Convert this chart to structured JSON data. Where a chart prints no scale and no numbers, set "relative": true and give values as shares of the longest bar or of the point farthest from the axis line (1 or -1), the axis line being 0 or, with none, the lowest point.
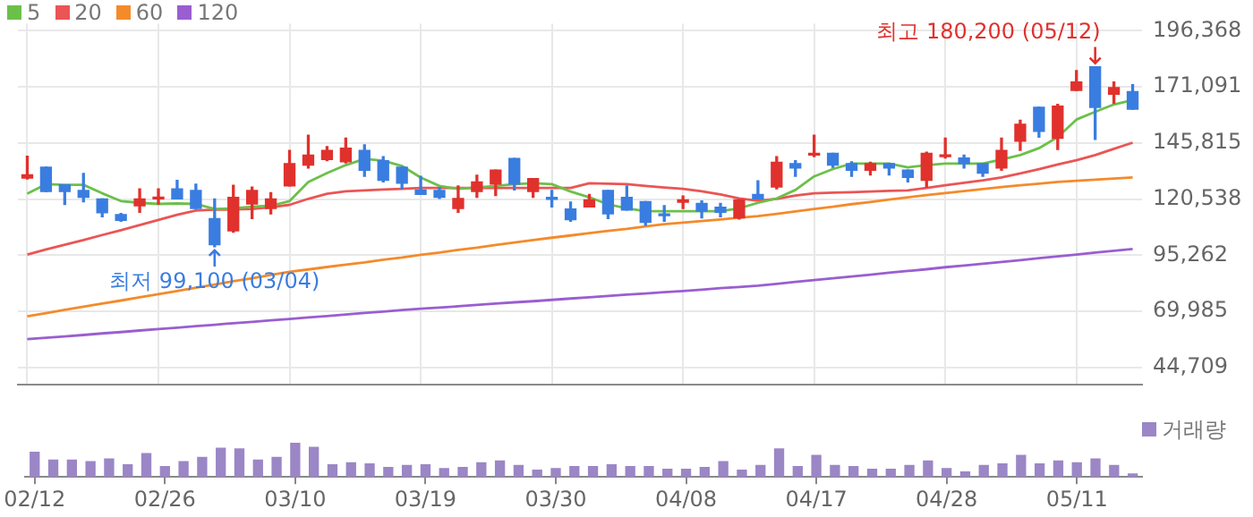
{
  "chart_data": [
    {
      "type": "candlestick",
      "categories": [
        null,
        null,
        null,
        null,
        null,
        null,
        null,
        null,
        null,
        null,
        null,
        null,
        null,
        null,
        null,
        null,
        null,
        null,
        null,
        null,
        null,
        null,
        null,
        null,
        null,
        null,
        null,
        null,
        null,
        null,
        null,
        null,
        null,
        null,
        null,
        null,
        null,
        null,
        null,
        null,
        null,
        null,
        null,
        null,
        null,
        null,
        null,
        null,
        null,
        null,
        null,
        null,
        null,
        null,
        null,
        null,
        null,
        null,
        null,
        null
      ],
      "ohlc": [
        [
          130000,
          139900,
          129600,
          131500
        ],
        [
          134900,
          134900,
          124000,
          124000
        ],
        [
          127000,
          127000,
          118200,
          124000
        ],
        [
          124500,
          132100,
          119400,
          121400
        ],
        [
          120700,
          120700,
          112600,
          114400
        ],
        [
          113600,
          114100,
          110600,
          111000
        ],
        [
          117600,
          125200,
          114600,
          120700
        ],
        [
          120700,
          125200,
          118400,
          121400
        ],
        [
          125200,
          129000,
          120700,
          120700
        ],
        [
          124500,
          127300,
          116400,
          116400
        ],
        [
          111800,
          120700,
          99100,
          100000
        ],
        [
          106300,
          126800,
          105700,
          121400
        ],
        [
          118400,
          126000,
          111800,
          124500
        ],
        [
          116400,
          123500,
          113900,
          120700
        ],
        [
          126500,
          142500,
          126500,
          136600
        ],
        [
          135900,
          149300,
          134600,
          140400
        ],
        [
          138400,
          144200,
          137900,
          142500
        ],
        [
          137400,
          148000,
          136900,
          143500
        ],
        [
          142500,
          145000,
          130800,
          133600
        ],
        [
          137900,
          139700,
          128300,
          129000
        ],
        [
          134900,
          134900,
          125200,
          127700
        ],
        [
          124700,
          130800,
          122700,
          122700
        ],
        [
          124500,
          125800,
          120900,
          121400
        ],
        [
          116400,
          126500,
          114600,
          120900
        ],
        [
          124000,
          131300,
          121400,
          128300
        ],
        [
          127300,
          133600,
          122200,
          133600
        ],
        [
          138900,
          138900,
          124700,
          127300
        ],
        [
          124000,
          129800,
          121400,
          129800
        ],
        [
          121400,
          124500,
          117100,
          120500
        ],
        [
          116100,
          119200,
          110600,
          111300
        ],
        [
          117100,
          122700,
          117100,
          120200
        ],
        [
          124500,
          124500,
          111800,
          113900
        ],
        [
          121400,
          126500,
          115600,
          115600
        ],
        [
          119400,
          119400,
          108800,
          110100
        ],
        [
          113900,
          117600,
          110600,
          113100
        ],
        [
          119200,
          122000,
          116400,
          120200
        ],
        [
          118600,
          119700,
          112100,
          115100
        ],
        [
          116900,
          118600,
          112600,
          114600
        ],
        [
          112100,
          120200,
          111600,
          120200
        ],
        [
          122700,
          128800,
          120700,
          120700
        ],
        [
          126000,
          139700,
          125200,
          137200
        ],
        [
          136600,
          137900,
          130800,
          134600
        ],
        [
          140400,
          149300,
          139700,
          141200
        ],
        [
          141200,
          141200,
          134900,
          135900
        ],
        [
          136600,
          137400,
          130800,
          133600
        ],
        [
          133600,
          137200,
          131500,
          136600
        ],
        [
          136600,
          136600,
          131500,
          134600
        ],
        [
          133600,
          133600,
          128300,
          130300
        ],
        [
          129000,
          141700,
          126000,
          141200
        ],
        [
          139700,
          148000,
          139100,
          140400
        ],
        [
          139100,
          140400,
          134600,
          136600
        ],
        [
          136600,
          136600,
          130800,
          132300
        ],
        [
          134600,
          148000,
          133600,
          142500
        ],
        [
          146700,
          156100,
          142500,
          154300
        ],
        [
          161900,
          161900,
          148500,
          151100
        ],
        [
          148000,
          163200,
          142900,
          162400
        ],
        [
          169500,
          178400,
          169500,
          173300
        ],
        [
          180200,
          180200,
          147500,
          161900
        ],
        [
          167800,
          173300,
          163700,
          170800
        ],
        [
          169000,
          172100,
          161100,
          161100
        ]
      ],
      "colors": [
        "#e0312d",
        "#3a7de0",
        "#3a7de0",
        "#3a7de0",
        "#3a7de0",
        "#3a7de0",
        "#e0312d",
        "#e0312d",
        "#3a7de0",
        "#3a7de0",
        "#3a7de0",
        "#e0312d",
        "#e0312d",
        "#e0312d",
        "#e0312d",
        "#e0312d",
        "#e0312d",
        "#e0312d",
        "#3a7de0",
        "#3a7de0",
        "#3a7de0",
        "#3a7de0",
        "#3a7de0",
        "#e0312d",
        "#e0312d",
        "#e0312d",
        "#3a7de0",
        "#e0312d",
        "#3a7de0",
        "#3a7de0",
        "#e0312d",
        "#3a7de0",
        "#3a7de0",
        "#3a7de0",
        "#3a7de0",
        "#e0312d",
        "#3a7de0",
        "#3a7de0",
        "#e0312d",
        "#3a7de0",
        "#e0312d",
        "#3a7de0",
        "#e0312d",
        "#3a7de0",
        "#3a7de0",
        "#e0312d",
        "#3a7de0",
        "#3a7de0",
        "#e0312d",
        "#e0312d",
        "#3a7de0",
        "#3a7de0",
        "#e0312d",
        "#e0312d",
        "#3a7de0",
        "#e0312d",
        "#e0312d",
        "#3a7de0",
        "#e0312d",
        "#3a7de0"
      ],
      "series": [
        {
          "type": "line",
          "name": "5",
          "color": "#6cc04a",
          "values": [
            123000,
            127300,
            127000,
            127000,
            123200,
            119700,
            118900,
            118400,
            118600,
            118400,
            116100,
            116400,
            117100,
            117600,
            119700,
            128300,
            132300,
            135900,
            138700,
            137900,
            135500,
            130300,
            126500,
            125200,
            125800,
            126500,
            127300,
            127700,
            127300,
            124000,
            121400,
            118200,
            116400,
            115100,
            115100,
            115100,
            115100,
            115100,
            116400,
            118900,
            120900,
            124700,
            130800,
            134100,
            136600,
            136600,
            136600,
            134900,
            135900,
            136600,
            136600,
            136600,
            138400,
            140400,
            143500,
            148500,
            156400,
            159900,
            163200,
            165200
          ]
        },
        {
          "type": "line",
          "name": "20",
          "color": "#ea5555",
          "values": [
            95600,
            97900,
            100000,
            102100,
            104400,
            106600,
            108900,
            111200,
            113500,
            115400,
            115800,
            115900,
            116100,
            116900,
            118000,
            120700,
            123000,
            124100,
            124500,
            124900,
            125200,
            125600,
            125600,
            125600,
            125600,
            125600,
            125600,
            125600,
            125600,
            125600,
            127700,
            127500,
            127300,
            126500,
            125800,
            125200,
            124100,
            122700,
            120900,
            119900,
            120700,
            122200,
            123200,
            123500,
            123700,
            124000,
            124300,
            124500,
            125600,
            126800,
            127900,
            129000,
            130300,
            132100,
            134100,
            136200,
            138100,
            140400,
            143200,
            146000
          ]
        },
        {
          "type": "line",
          "name": "60",
          "color": "#f58a2a",
          "values": [
            67800,
            69200,
            70700,
            72100,
            73500,
            74900,
            76400,
            77800,
            79200,
            80700,
            82100,
            83600,
            84900,
            86400,
            87800,
            88900,
            90000,
            91100,
            92100,
            93300,
            94300,
            95500,
            96500,
            97700,
            98700,
            99900,
            101000,
            102100,
            103200,
            104200,
            105300,
            106300,
            107200,
            108300,
            109300,
            110000,
            110700,
            111400,
            112200,
            112900,
            113900,
            115000,
            116100,
            117100,
            118300,
            119300,
            120400,
            121400,
            122400,
            123300,
            124200,
            125100,
            126000,
            126800,
            127500,
            128300,
            128800,
            129300,
            129800,
            130300
          ]
        },
        {
          "type": "line",
          "name": "120",
          "color": "#9a5ed0",
          "values": [
            57500,
            58100,
            58700,
            59400,
            60100,
            60700,
            61400,
            62100,
            62700,
            63400,
            64000,
            64700,
            65300,
            66000,
            66600,
            67300,
            67900,
            68600,
            69300,
            69900,
            70600,
            71200,
            71700,
            72300,
            72900,
            73500,
            74100,
            74600,
            75200,
            75800,
            76400,
            77000,
            77600,
            78100,
            78700,
            79200,
            79800,
            80500,
            81000,
            81600,
            82400,
            83300,
            84100,
            84900,
            85700,
            86500,
            87400,
            88200,
            89000,
            89900,
            90700,
            91500,
            92300,
            93100,
            94000,
            94800,
            95600,
            96500,
            97300,
            98100
          ]
        }
      ],
      "ylim": [
        37200,
        199600
      ],
      "yticks": [
        {
          "value": 196368,
          "label": "196,368"
        },
        {
          "value": 171091,
          "label": "171,091"
        },
        {
          "value": 145815,
          "label": "145,815"
        },
        {
          "value": 120538,
          "label": "120,538"
        },
        {
          "value": 95262,
          "label": "95,262"
        },
        {
          "value": 69985,
          "label": "69,985"
        },
        {
          "value": 44709,
          "label": "44,709"
        }
      ],
      "grid": true,
      "legend": "top left",
      "tick_labels": "y",
      "marker": "none",
      "line_style": "solid",
      "annotations": [
        "최고 180,200 (05/12)",
        "최저 99,100 (03/04)"
      ]
    },
    {
      "type": "bar",
      "categories": [
        "02/12",
        null,
        null,
        null,
        null,
        null,
        null,
        "02/26",
        null,
        null,
        null,
        null,
        null,
        null,
        "03/10",
        null,
        null,
        null,
        null,
        null,
        null,
        "03/19",
        null,
        null,
        null,
        null,
        null,
        null,
        "03/30",
        null,
        null,
        null,
        null,
        null,
        null,
        "04/08",
        null,
        null,
        null,
        null,
        null,
        null,
        "04/17",
        null,
        null,
        null,
        null,
        null,
        null,
        "04/28",
        null,
        null,
        null,
        null,
        null,
        null,
        "05/11",
        null,
        null,
        null
      ],
      "series": [
        {
          "name": "거래량",
          "color": "#9b86c6",
          "values": [
            0.73,
            0.5,
            0.5,
            0.45,
            0.53,
            0.36,
            0.69,
            0.31,
            0.45,
            0.58,
            0.85,
            0.83,
            0.5,
            0.58,
            1,
            0.88,
            0.36,
            0.42,
            0.39,
            0.28,
            0.34,
            0.36,
            0.25,
            0.28,
            0.42,
            0.47,
            0.34,
            0.2,
            0.25,
            0.31,
            0.31,
            0.36,
            0.31,
            0.31,
            0.23,
            0.23,
            0.28,
            0.45,
            0.2,
            0.34,
            0.83,
            0.31,
            0.64,
            0.34,
            0.31,
            0.23,
            0.23,
            0.34,
            0.47,
            0.25,
            0.15,
            0.34,
            0.39,
            0.64,
            0.39,
            0.47,
            0.42,
            0.53,
            0.34,
            0.09
          ]
        }
      ],
      "relative": true,
      "legend": "top right",
      "tick_labels": "x",
      "grid": false
    }
  ]
}
